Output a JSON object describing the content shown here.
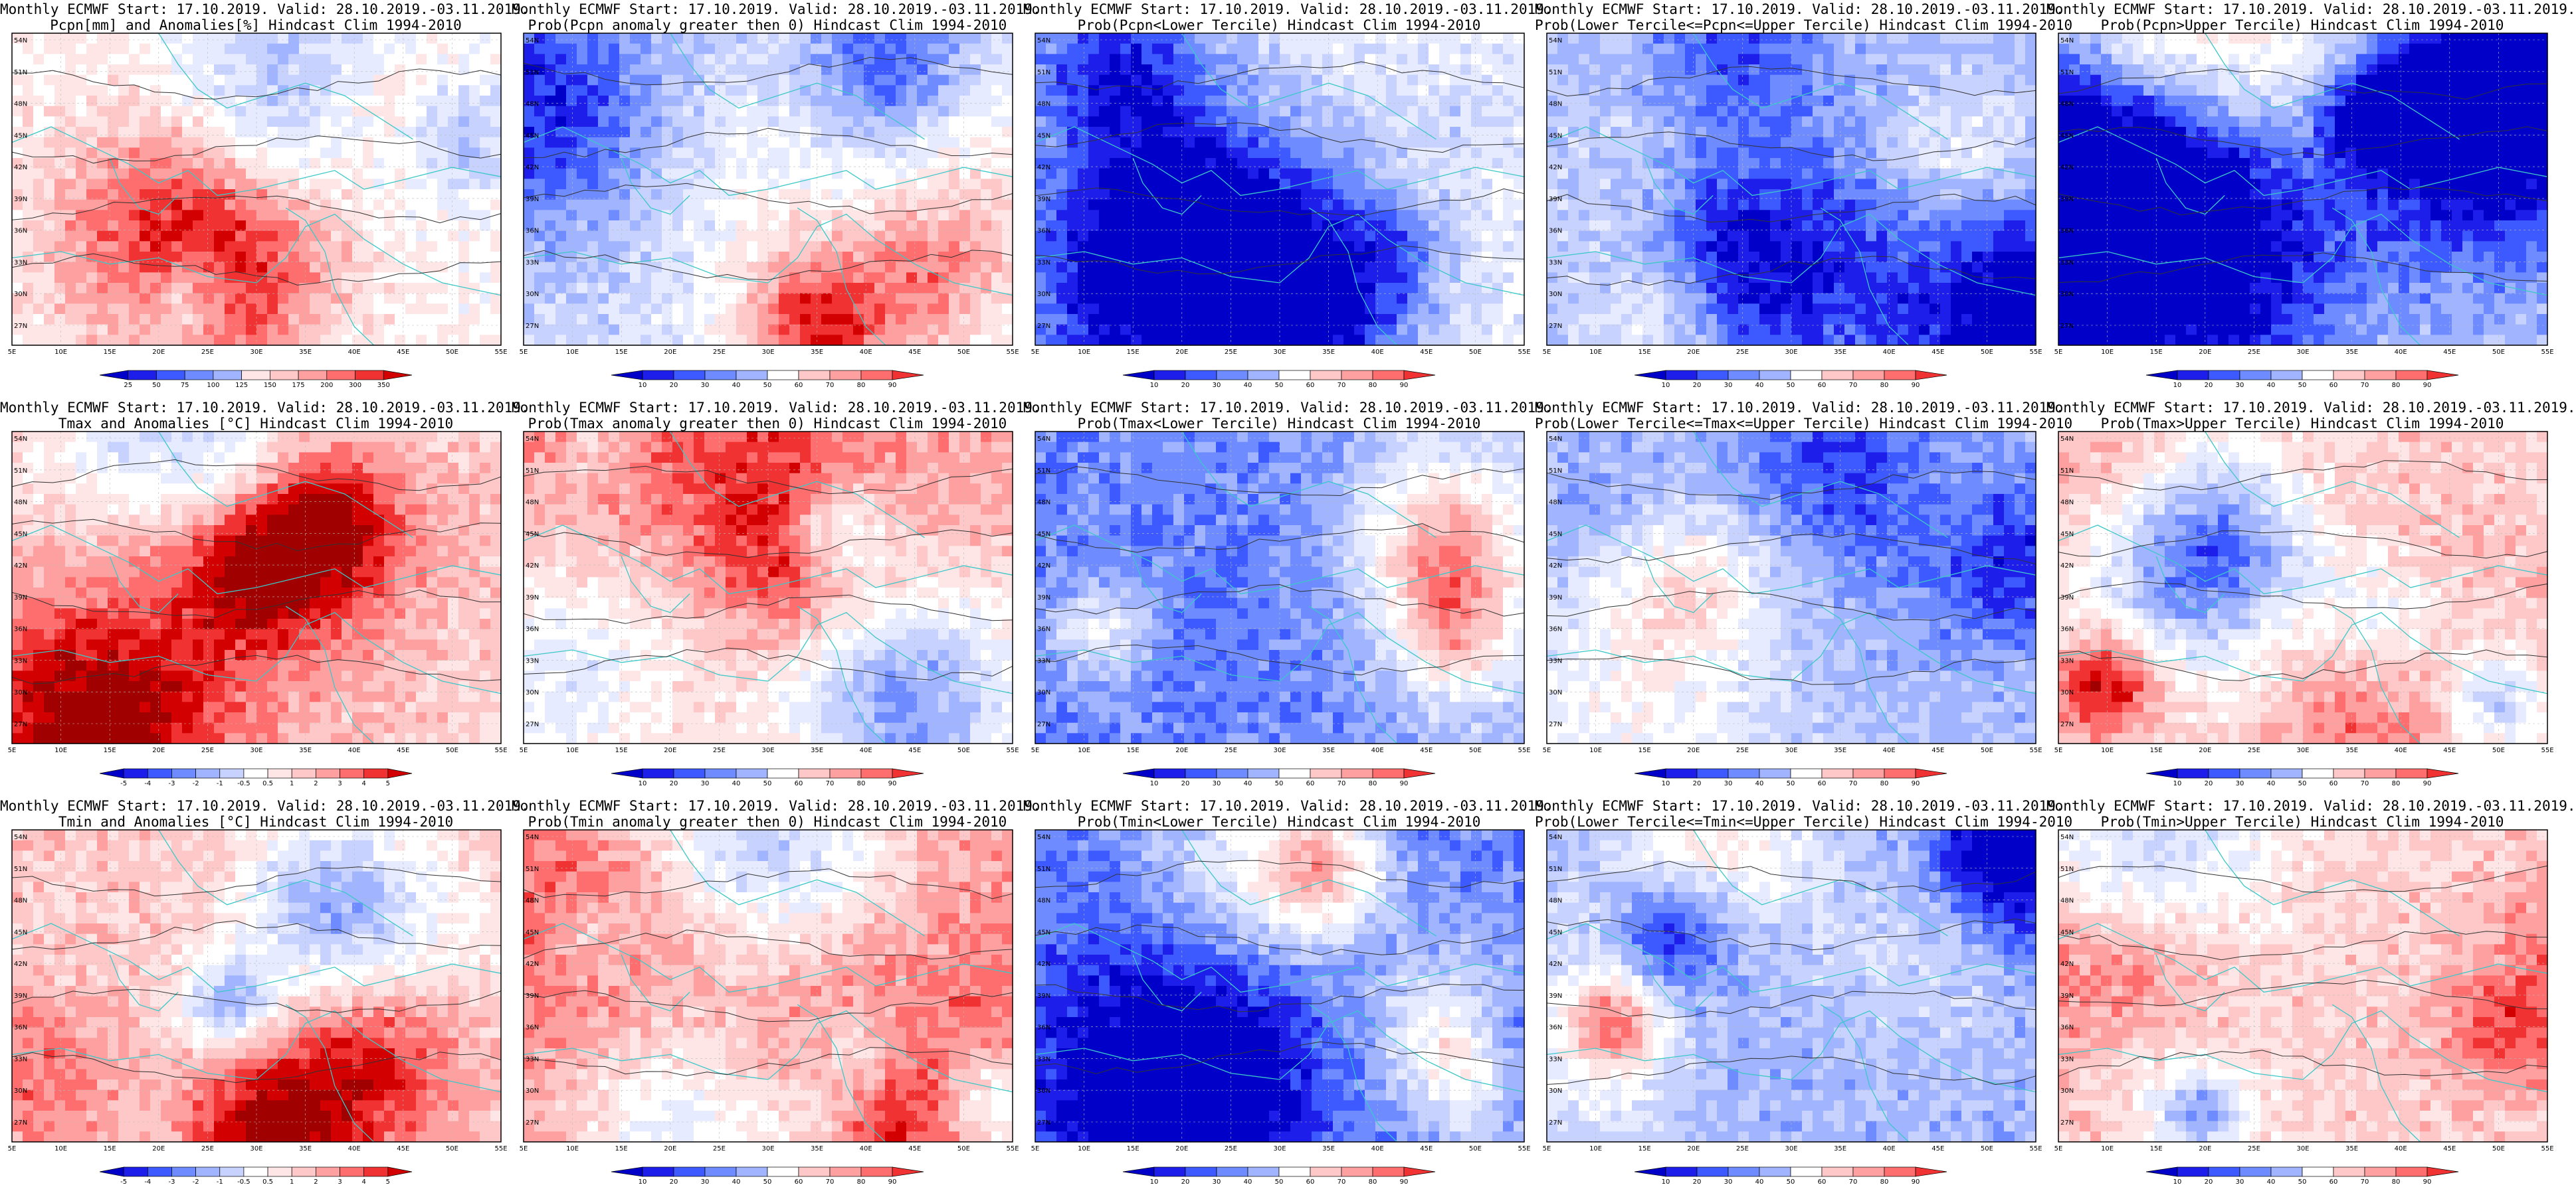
{
  "lat_labels": [
    "54N",
    "51N",
    "48N",
    "45N",
    "42N",
    "39N",
    "36N",
    "33N",
    "30N",
    "27N"
  ],
  "lon_labels": [
    "5E",
    "10E",
    "15E",
    "20E",
    "25E",
    "30E",
    "35E",
    "40E",
    "45E",
    "50E",
    "55E"
  ],
  "colors": {
    "blue": [
      "#0000c8",
      "#1e1eeb",
      "#3c5aff",
      "#6e8cff",
      "#a0b4ff",
      "#c8d2ff",
      "#e6ebff"
    ],
    "red": [
      "#ffe6e6",
      "#ffc8c8",
      "#ffa0a0",
      "#ff6e6e",
      "#f03232",
      "#d20000",
      "#a00000"
    ],
    "neutral": "#ffffff",
    "contour": "#333333",
    "coast": "#3cc8c8"
  },
  "colorbars": {
    "pcpn_anom": [
      "25",
      "50",
      "75",
      "100",
      "125",
      "150",
      "175",
      "200",
      "300",
      "350"
    ],
    "prob": [
      "10",
      "20",
      "30",
      "40",
      "50",
      "60",
      "70",
      "80",
      "90"
    ],
    "temp_anom": [
      "-5",
      "-4",
      "-3",
      "-2",
      "-1",
      "-0.5",
      "0.5",
      "1",
      "2",
      "3",
      "4",
      "5"
    ]
  },
  "panels": [
    {
      "title1": "Monthly ECMWF Start: 17.10.2019. Valid: 28.10.2019.-03.11.2019.",
      "title2": "Pcpn[mm] and Anomalies[%] Hindcast Clim 1994-2010",
      "cbar": "pcpn_anom",
      "bias": 0.05,
      "seed": 11
    },
    {
      "title1": "Monthly ECMWF Start: 17.10.2019. Valid: 28.10.2019.-03.11.2019.",
      "title2": "Prob(Pcpn anomaly greater then 0) Hindcast Clim 1994-2010",
      "cbar": "prob",
      "bias": -0.35,
      "seed": 12
    },
    {
      "title1": "Monthly ECMWF Start: 17.10.2019. Valid: 28.10.2019.-03.11.2019.",
      "title2": "Prob(Pcpn<Lower Tercile) Hindcast Clim 1994-2010",
      "cbar": "prob",
      "bias": -0.15,
      "seed": 13
    },
    {
      "title1": "Monthly ECMWF Start: 17.10.2019. Valid: 28.10.2019.-03.11.2019.",
      "title2": "Prob(Lower Tercile<=Pcpn<=Upper Tercile) Hindcast Clim 1994-2010",
      "cbar": "prob",
      "bias": -0.55,
      "seed": 14
    },
    {
      "title1": "Monthly ECMWF Start: 17.10.2019. Valid: 28.10.2019.-03.11.2019.",
      "title2": "Prob(Pcpn>Upper Tercile) Hindcast Clim 1994-2010",
      "cbar": "prob",
      "bias": -0.45,
      "seed": 15
    },
    {
      "title1": "Monthly ECMWF Start: 17.10.2019. Valid: 28.10.2019.-03.11.2019.",
      "title2": "Tmax and Anomalies [°C] Hindcast Clim 1994-2010",
      "cbar": "temp_anom",
      "bias": 0.35,
      "seed": 21
    },
    {
      "title1": "Monthly ECMWF Start: 17.10.2019. Valid: 28.10.2019.-03.11.2019.",
      "title2": "Prob(Tmax anomaly greater then 0) Hindcast Clim 1994-2010",
      "cbar": "prob",
      "bias": 0.55,
      "seed": 22
    },
    {
      "title1": "Monthly ECMWF Start: 17.10.2019. Valid: 28.10.2019.-03.11.2019.",
      "title2": "Prob(Tmax<Lower Tercile) Hindcast Clim 1994-2010",
      "cbar": "prob",
      "bias": -0.8,
      "seed": 23
    },
    {
      "title1": "Monthly ECMWF Start: 17.10.2019. Valid: 28.10.2019.-03.11.2019.",
      "title2": "Prob(Lower Tercile<=Tmax<=Upper Tercile) Hindcast Clim 1994-2010",
      "cbar": "prob",
      "bias": -0.55,
      "seed": 24
    },
    {
      "title1": "Monthly ECMWF Start: 17.10.2019. Valid: 28.10.2019.-03.11.2019.",
      "title2": "Prob(Tmax>Upper Tercile) Hindcast Clim 1994-2010",
      "cbar": "prob",
      "bias": 0.3,
      "seed": 25
    },
    {
      "title1": "Monthly ECMWF Start: 17.10.2019. Valid: 28.10.2019.-03.11.2019.",
      "title2": "Tmin and Anomalies [°C] Hindcast Clim 1994-2010",
      "cbar": "temp_anom",
      "bias": 0.4,
      "seed": 31
    },
    {
      "title1": "Monthly ECMWF Start: 17.10.2019. Valid: 28.10.2019.-03.11.2019.",
      "title2": "Prob(Tmin anomaly greater then 0) Hindcast Clim 1994-2010",
      "cbar": "prob",
      "bias": 0.65,
      "seed": 32
    },
    {
      "title1": "Monthly ECMWF Start: 17.10.2019. Valid: 28.10.2019.-03.11.2019.",
      "title2": "Prob(Tmin<Lower Tercile) Hindcast Clim 1994-2010",
      "cbar": "prob",
      "bias": -0.85,
      "seed": 33
    },
    {
      "title1": "Monthly ECMWF Start: 17.10.2019. Valid: 28.10.2019.-03.11.2019.",
      "title2": "Prob(Lower Tercile<=Tmin<=Upper Tercile) Hindcast Clim 1994-2010",
      "cbar": "prob",
      "bias": -0.6,
      "seed": 34
    },
    {
      "title1": "Monthly ECMWF Start: 17.10.2019. Valid: 28.10.2019.-03.11.2019.",
      "title2": "Prob(Tmin>Upper Tercile) Hindcast Clim 1994-2010",
      "cbar": "prob",
      "bias": 0.35,
      "seed": 35
    }
  ]
}
